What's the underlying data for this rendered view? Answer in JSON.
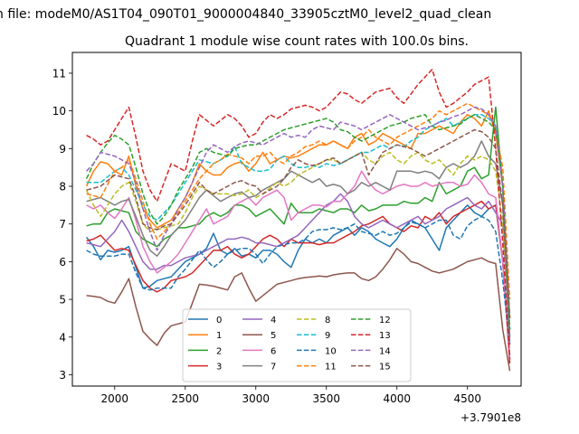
{
  "chart_data": {
    "type": "line",
    "suptitle": "n file: modeM0/AS1T04_090T01_9000004840_33905cztM0_level2_quad_clean",
    "title": "Quadrant 1 module wise count rates with 100.0s bins.",
    "xlabel": "",
    "ylabel": "",
    "x_offset_label": "+3.7901e8",
    "xlim": [
      1700,
      4880
    ],
    "ylim": [
      2.7,
      11.55
    ],
    "x_ticks": [
      2000,
      2500,
      3000,
      3500,
      4000,
      4500
    ],
    "x_tick_labels": [
      "2000",
      "2500",
      "3000",
      "3500",
      "4000",
      "4500"
    ],
    "y_ticks": [
      3,
      4,
      5,
      6,
      7,
      8,
      9,
      10,
      11
    ],
    "y_tick_labels": [
      "3",
      "4",
      "5",
      "6",
      "7",
      "8",
      "9",
      "10",
      "11"
    ],
    "legend_position": "lower-center",
    "legend_columns": 4,
    "x": [
      1800,
      1850,
      1900,
      1950,
      2000,
      2050,
      2100,
      2150,
      2200,
      2250,
      2300,
      2350,
      2400,
      2450,
      2500,
      2550,
      2600,
      2650,
      2700,
      2750,
      2800,
      2850,
      2900,
      2950,
      3000,
      3050,
      3100,
      3150,
      3200,
      3250,
      3300,
      3350,
      3400,
      3450,
      3500,
      3550,
      3600,
      3650,
      3700,
      3750,
      3800,
      3850,
      3900,
      3950,
      4000,
      4050,
      4100,
      4150,
      4200,
      4250,
      4300,
      4350,
      4400,
      4450,
      4500,
      4550,
      4600,
      4650,
      4700,
      4750,
      4800
    ],
    "series": [
      {
        "name": "0",
        "color": "#1f77b4",
        "dash": "solid",
        "values": [
          6.65,
          6.4,
          6.05,
          6.3,
          6.25,
          6.3,
          6.4,
          5.85,
          5.3,
          5.35,
          5.5,
          5.55,
          5.6,
          5.8,
          6.0,
          6.1,
          6.2,
          6.35,
          6.75,
          6.3,
          6.2,
          6.35,
          6.15,
          6.2,
          6.1,
          6.3,
          6.3,
          6.2,
          6.0,
          5.85,
          6.3,
          6.6,
          6.5,
          6.6,
          6.5,
          6.7,
          6.8,
          6.9,
          6.7,
          6.9,
          6.8,
          6.6,
          6.5,
          6.4,
          6.6,
          6.9,
          7.1,
          7.0,
          6.9,
          6.6,
          6.3,
          6.9,
          7.1,
          7.3,
          7.5,
          7.3,
          7.2,
          7.4,
          7.5,
          6.0,
          3.5
        ]
      },
      {
        "name": "1",
        "color": "#ff7f0e",
        "dash": "solid",
        "values": [
          8.0,
          8.4,
          8.65,
          8.6,
          8.4,
          8.3,
          8.8,
          8.0,
          7.4,
          7.1,
          6.9,
          7.0,
          7.1,
          7.4,
          7.7,
          8.1,
          8.6,
          8.4,
          8.3,
          8.3,
          8.5,
          8.6,
          8.65,
          8.4,
          8.6,
          8.9,
          8.6,
          8.7,
          8.8,
          8.75,
          8.8,
          8.9,
          9.0,
          9.1,
          9.1,
          9.2,
          9.1,
          9.0,
          9.3,
          9.4,
          9.1,
          9.2,
          9.4,
          9.3,
          9.2,
          9.1,
          9.0,
          9.4,
          9.4,
          9.5,
          9.6,
          9.5,
          9.4,
          9.7,
          9.9,
          9.8,
          9.6,
          10.0,
          9.4,
          8.0,
          4.5
        ]
      },
      {
        "name": "2",
        "color": "#2ca02c",
        "dash": "solid",
        "values": [
          6.95,
          7.0,
          7.0,
          7.3,
          7.4,
          7.35,
          7.3,
          6.8,
          6.6,
          6.5,
          6.4,
          6.6,
          6.7,
          6.9,
          6.9,
          6.95,
          7.0,
          7.2,
          7.3,
          7.2,
          7.3,
          7.5,
          7.5,
          7.4,
          7.2,
          7.3,
          7.4,
          7.2,
          7.0,
          7.55,
          7.3,
          7.3,
          7.3,
          7.4,
          7.35,
          7.3,
          7.4,
          7.4,
          7.3,
          7.5,
          7.35,
          7.4,
          7.5,
          7.5,
          7.5,
          7.6,
          7.55,
          7.55,
          7.7,
          7.6,
          8.1,
          7.8,
          7.9,
          8.0,
          8.4,
          8.5,
          8.2,
          8.3,
          10.1,
          8.0,
          4.0
        ]
      },
      {
        "name": "3",
        "color": "#d62728",
        "dash": "solid",
        "values": [
          6.55,
          6.6,
          6.7,
          6.5,
          6.3,
          6.35,
          6.3,
          5.9,
          5.5,
          5.3,
          5.2,
          5.3,
          5.5,
          5.55,
          5.6,
          5.7,
          5.9,
          6.1,
          6.3,
          6.3,
          6.4,
          6.2,
          6.1,
          6.2,
          6.4,
          6.6,
          6.7,
          6.6,
          6.4,
          6.6,
          6.5,
          6.5,
          6.5,
          6.45,
          6.5,
          6.5,
          6.6,
          6.7,
          6.8,
          6.95,
          7.0,
          7.1,
          7.2,
          7.0,
          6.9,
          6.8,
          6.95,
          6.9,
          7.2,
          7.1,
          7.3,
          7.0,
          7.2,
          7.3,
          7.4,
          7.5,
          7.6,
          7.4,
          7.5,
          6.0,
          3.3
        ]
      },
      {
        "name": "4",
        "color": "#9467bd",
        "dash": "solid",
        "values": [
          6.5,
          6.45,
          6.4,
          6.6,
          6.8,
          7.1,
          6.8,
          6.4,
          6.0,
          5.8,
          5.8,
          5.9,
          5.9,
          6.0,
          6.1,
          6.15,
          6.2,
          6.3,
          6.4,
          6.5,
          6.6,
          6.6,
          6.65,
          6.6,
          6.5,
          6.5,
          6.45,
          6.4,
          6.5,
          6.6,
          6.7,
          6.9,
          7.1,
          7.3,
          7.5,
          7.6,
          7.8,
          7.6,
          7.2,
          7.0,
          6.9,
          7.0,
          7.1,
          7.0,
          6.9,
          7.0,
          7.1,
          7.2,
          7.0,
          7.1,
          7.2,
          7.4,
          7.5,
          7.6,
          7.7,
          7.5,
          7.4,
          7.6,
          7.3,
          7.0,
          4.0
        ]
      },
      {
        "name": "5",
        "color": "#8c564b",
        "dash": "solid",
        "values": [
          5.1,
          5.08,
          5.05,
          4.95,
          4.9,
          5.2,
          5.55,
          4.8,
          4.15,
          3.95,
          3.78,
          4.1,
          4.3,
          4.35,
          4.4,
          4.9,
          5.4,
          5.38,
          5.35,
          5.3,
          5.25,
          5.6,
          5.7,
          5.3,
          4.95,
          5.1,
          5.25,
          5.4,
          5.45,
          5.5,
          5.55,
          5.58,
          5.6,
          5.62,
          5.6,
          5.65,
          5.68,
          5.7,
          5.7,
          5.55,
          5.5,
          5.6,
          5.8,
          6.05,
          6.35,
          6.2,
          6.0,
          5.95,
          5.85,
          5.75,
          5.7,
          5.75,
          5.8,
          5.9,
          6.0,
          6.05,
          6.1,
          6.0,
          5.95,
          4.2,
          3.1
        ]
      },
      {
        "name": "6",
        "color": "#e377c2",
        "dash": "solid",
        "values": [
          7.5,
          7.4,
          7.5,
          7.3,
          7.15,
          7.4,
          7.7,
          7.1,
          6.4,
          6.0,
          5.7,
          5.85,
          6.0,
          6.2,
          6.5,
          6.8,
          7.1,
          7.4,
          7.0,
          7.1,
          7.2,
          7.5,
          7.6,
          7.7,
          7.5,
          7.7,
          7.8,
          7.9,
          7.7,
          7.1,
          7.3,
          7.4,
          7.5,
          7.5,
          7.45,
          7.6,
          7.6,
          7.8,
          8.0,
          8.4,
          8.1,
          7.9,
          7.8,
          7.9,
          8.0,
          8.05,
          8.0,
          8.0,
          8.1,
          8.0,
          8.05,
          8.1,
          8.1,
          8.0,
          8.05,
          8.3,
          8.1,
          7.8,
          7.7,
          6.0,
          3.4
        ]
      },
      {
        "name": "7",
        "color": "#7f7f7f",
        "dash": "solid",
        "values": [
          7.6,
          7.65,
          7.7,
          7.6,
          7.5,
          7.6,
          7.65,
          7.2,
          6.7,
          6.3,
          6.15,
          6.4,
          6.7,
          6.9,
          7.1,
          7.4,
          7.7,
          7.9,
          7.75,
          7.6,
          7.7,
          7.8,
          7.85,
          7.7,
          7.75,
          7.9,
          8.0,
          8.1,
          8.2,
          8.4,
          8.3,
          8.2,
          8.1,
          8.2,
          8.0,
          8.05,
          8.0,
          7.8,
          7.9,
          8.1,
          8.0,
          8.1,
          8.0,
          7.9,
          8.4,
          8.4,
          8.4,
          8.35,
          8.4,
          8.35,
          8.2,
          8.5,
          8.6,
          8.5,
          8.6,
          8.8,
          9.2,
          8.8,
          8.6,
          7.5,
          3.8
        ]
      },
      {
        "name": "8",
        "color": "#bcbd22",
        "dash": "dashed",
        "values": [
          7.9,
          7.5,
          7.2,
          7.5,
          7.8,
          8.0,
          8.1,
          7.6,
          7.0,
          6.8,
          6.85,
          6.9,
          6.95,
          7.0,
          7.3,
          7.7,
          8.0,
          7.9,
          7.8,
          7.8,
          7.8,
          7.75,
          7.8,
          7.9,
          7.7,
          7.8,
          7.95,
          8.1,
          8.0,
          8.1,
          8.3,
          8.4,
          8.5,
          8.6,
          8.7,
          8.7,
          8.6,
          8.7,
          8.8,
          8.9,
          8.7,
          8.6,
          8.8,
          8.9,
          8.7,
          8.6,
          8.8,
          8.9,
          8.7,
          8.6,
          8.7,
          8.5,
          8.3,
          8.6,
          8.8,
          8.7,
          8.8,
          8.7,
          8.4,
          7.0,
          4.5
        ]
      },
      {
        "name": "9",
        "color": "#17becf",
        "dash": "dashed",
        "values": [
          8.1,
          8.1,
          8.1,
          8.25,
          8.4,
          8.5,
          8.3,
          7.9,
          7.5,
          7.2,
          7.1,
          7.3,
          7.5,
          7.8,
          8.1,
          8.4,
          8.7,
          8.65,
          8.6,
          8.7,
          8.8,
          9.05,
          8.6,
          8.5,
          8.4,
          8.4,
          8.45,
          8.7,
          8.8,
          8.6,
          8.5,
          8.5,
          8.55,
          8.5,
          8.6,
          8.55,
          8.6,
          8.7,
          8.8,
          8.9,
          8.9,
          9.0,
          9.1,
          9.0,
          9.1,
          9.05,
          9.2,
          9.3,
          9.5,
          9.6,
          9.7,
          9.8,
          9.6,
          9.7,
          9.8,
          9.9,
          9.9,
          9.8,
          9.6,
          8.0,
          4.2
        ]
      },
      {
        "name": "10",
        "color": "#1f77b4",
        "dash": "dashed",
        "values": [
          6.3,
          6.2,
          6.15,
          6.15,
          6.15,
          6.2,
          6.2,
          5.7,
          5.3,
          5.25,
          5.3,
          5.3,
          5.3,
          5.6,
          5.8,
          6.05,
          6.3,
          6.05,
          5.85,
          6.0,
          6.2,
          6.3,
          6.35,
          6.35,
          6.2,
          5.95,
          6.2,
          6.4,
          6.45,
          6.5,
          6.5,
          6.6,
          6.8,
          6.85,
          6.85,
          6.9,
          6.85,
          6.9,
          7.0,
          6.8,
          6.75,
          6.7,
          6.8,
          6.7,
          6.75,
          6.9,
          7.05,
          7.0,
          6.9,
          7.0,
          7.1,
          7.1,
          6.7,
          6.6,
          6.95,
          7.1,
          7.2,
          7.1,
          6.8,
          5.5,
          3.8
        ]
      },
      {
        "name": "11",
        "color": "#ff7f0e",
        "dash": "dashed",
        "values": [
          7.8,
          7.75,
          7.7,
          8.05,
          8.4,
          8.5,
          8.7,
          8.2,
          7.6,
          7.0,
          6.6,
          6.8,
          7.0,
          7.3,
          7.6,
          7.9,
          8.2,
          8.4,
          8.6,
          8.7,
          8.85,
          8.8,
          8.75,
          8.6,
          8.8,
          8.8,
          8.9,
          8.7,
          8.6,
          8.8,
          8.9,
          9.05,
          9.1,
          9.2,
          9.1,
          9.2,
          9.1,
          9.0,
          9.2,
          9.3,
          9.5,
          9.3,
          9.2,
          9.1,
          9.3,
          9.4,
          9.5,
          9.6,
          9.7,
          9.8,
          10.0,
          9.9,
          10.0,
          10.1,
          10.2,
          10.1,
          10.0,
          9.9,
          9.5,
          8.5,
          5.0
        ]
      },
      {
        "name": "12",
        "color": "#2ca02c",
        "dash": "dashed",
        "values": [
          8.2,
          8.6,
          8.9,
          9.15,
          9.35,
          9.25,
          9.1,
          8.5,
          7.8,
          7.3,
          7.0,
          7.2,
          7.5,
          7.9,
          8.2,
          8.5,
          8.9,
          9.0,
          8.9,
          8.85,
          8.8,
          9.0,
          9.05,
          9.1,
          9.1,
          9.2,
          9.3,
          9.4,
          9.5,
          9.55,
          9.6,
          9.65,
          9.7,
          9.75,
          9.8,
          9.7,
          9.5,
          9.45,
          9.3,
          9.2,
          9.3,
          9.4,
          9.5,
          9.6,
          9.65,
          9.7,
          9.8,
          9.85,
          9.9,
          9.6,
          9.5,
          9.55,
          9.6,
          9.65,
          9.8,
          9.9,
          9.8,
          9.7,
          9.5,
          8.0,
          4.2
        ]
      },
      {
        "name": "13",
        "color": "#d62728",
        "dash": "dashed",
        "values": [
          9.35,
          9.25,
          9.1,
          9.2,
          9.5,
          9.8,
          10.1,
          9.3,
          8.4,
          7.9,
          7.6,
          8.1,
          8.6,
          8.5,
          8.4,
          9.2,
          9.9,
          9.75,
          9.6,
          9.75,
          9.9,
          9.8,
          9.6,
          9.3,
          9.4,
          9.7,
          9.9,
          9.8,
          9.9,
          10.05,
          10.1,
          10.15,
          10.1,
          10.0,
          10.1,
          10.3,
          10.5,
          10.45,
          10.3,
          10.2,
          10.35,
          10.5,
          10.55,
          10.6,
          10.35,
          10.2,
          10.45,
          10.7,
          10.9,
          11.1,
          10.5,
          10.1,
          10.2,
          10.35,
          10.5,
          10.7,
          10.8,
          10.9,
          9.0,
          6.5,
          3.4
        ]
      },
      {
        "name": "14",
        "color": "#9467bd",
        "dash": "dashed",
        "values": [
          8.4,
          8.6,
          8.9,
          8.85,
          8.8,
          8.7,
          8.6,
          8.1,
          7.4,
          6.8,
          6.3,
          6.7,
          7.0,
          7.4,
          7.7,
          8.1,
          8.5,
          8.9,
          9.1,
          9.0,
          8.9,
          9.05,
          9.15,
          9.2,
          9.15,
          9.1,
          9.2,
          9.3,
          9.4,
          9.3,
          9.35,
          9.3,
          9.5,
          9.6,
          9.55,
          9.5,
          9.7,
          9.65,
          9.6,
          9.5,
          9.6,
          9.7,
          9.8,
          9.9,
          9.8,
          9.7,
          9.6,
          9.5,
          9.55,
          9.6,
          9.7,
          9.75,
          9.85,
          9.9,
          10.0,
          10.1,
          10.05,
          9.9,
          9.6,
          8.0,
          4.5
        ]
      },
      {
        "name": "15",
        "color": "#8c564b",
        "dash": "dashed",
        "values": [
          7.9,
          7.95,
          8.0,
          8.15,
          8.3,
          8.25,
          8.2,
          7.7,
          7.0,
          6.9,
          6.85,
          6.95,
          7.0,
          7.25,
          7.5,
          7.8,
          8.1,
          7.9,
          7.8,
          7.9,
          8.0,
          8.1,
          8.15,
          8.05,
          8.0,
          7.8,
          7.9,
          8.0,
          8.2,
          8.5,
          8.7,
          8.6,
          8.55,
          8.6,
          8.7,
          8.75,
          8.6,
          8.7,
          8.8,
          8.9,
          8.3,
          8.6,
          8.9,
          9.0,
          9.1,
          9.05,
          9.0,
          8.9,
          8.8,
          8.9,
          9.0,
          9.1,
          9.2,
          9.3,
          9.4,
          9.5,
          9.45,
          9.3,
          9.0,
          7.5,
          4.5
        ]
      }
    ]
  }
}
